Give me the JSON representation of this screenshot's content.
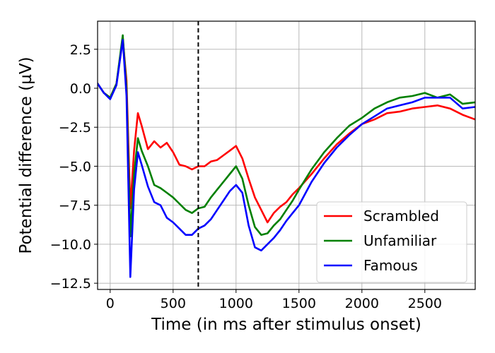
{
  "chart_data": {
    "type": "line",
    "title": "",
    "xlabel": "Time (in ms after stimulus onset)",
    "ylabel": "Potential difference (µV)",
    "xlim": [
      -100,
      2900
    ],
    "ylim": [
      -12.9,
      4.3
    ],
    "xticks": [
      0,
      500,
      1000,
      1500,
      2000,
      2500
    ],
    "xtick_labels": [
      "0",
      "500",
      "1000",
      "1500",
      "2000",
      "2500"
    ],
    "yticks": [
      2.5,
      0.0,
      -2.5,
      -5.0,
      -7.5,
      -10.0,
      -12.5
    ],
    "ytick_labels": [
      "2.5",
      "0.0",
      "−2.5",
      "−5.0",
      "−7.5",
      "−10.0",
      "−12.5"
    ],
    "grid": true,
    "legend_position": "lower-right",
    "vline": {
      "x": 700,
      "style": "dashed",
      "color": "#000000"
    },
    "series": [
      {
        "name": "Scrambled",
        "color": "#ff0000",
        "x": [
          -100,
          -50,
          0,
          50,
          100,
          130,
          160,
          190,
          220,
          250,
          300,
          350,
          400,
          450,
          500,
          550,
          600,
          650,
          700,
          750,
          800,
          850,
          900,
          950,
          1000,
          1050,
          1100,
          1150,
          1200,
          1250,
          1300,
          1350,
          1400,
          1450,
          1500,
          1600,
          1700,
          1800,
          1900,
          2000,
          2100,
          2200,
          2300,
          2400,
          2500,
          2600,
          2700,
          2800,
          2900
        ],
        "y": [
          0.3,
          -0.3,
          -0.6,
          0.3,
          3.2,
          0.5,
          -7.7,
          -4.0,
          -1.6,
          -2.4,
          -3.9,
          -3.4,
          -3.8,
          -3.5,
          -4.1,
          -4.9,
          -5.0,
          -5.2,
          -5.0,
          -5.0,
          -4.7,
          -4.6,
          -4.3,
          -4.0,
          -3.7,
          -4.5,
          -5.8,
          -7.0,
          -7.8,
          -8.6,
          -8.0,
          -7.6,
          -7.3,
          -6.8,
          -6.4,
          -5.5,
          -4.5,
          -3.6,
          -2.9,
          -2.3,
          -2.0,
          -1.6,
          -1.5,
          -1.3,
          -1.2,
          -1.1,
          -1.3,
          -1.7,
          -2.0
        ]
      },
      {
        "name": "Unfamiliar",
        "color": "#008000",
        "x": [
          -100,
          -50,
          0,
          50,
          100,
          130,
          160,
          190,
          220,
          250,
          300,
          350,
          400,
          450,
          500,
          550,
          600,
          650,
          700,
          750,
          800,
          850,
          900,
          950,
          1000,
          1050,
          1100,
          1150,
          1200,
          1250,
          1300,
          1350,
          1400,
          1450,
          1500,
          1600,
          1700,
          1800,
          1900,
          2000,
          2100,
          2200,
          2300,
          2400,
          2500,
          2600,
          2700,
          2800,
          2900
        ],
        "y": [
          0.3,
          -0.3,
          -0.6,
          0.3,
          3.4,
          0.0,
          -9.5,
          -5.5,
          -3.2,
          -4.0,
          -5.0,
          -6.2,
          -6.4,
          -6.7,
          -7.0,
          -7.4,
          -7.8,
          -8.0,
          -7.7,
          -7.6,
          -7.0,
          -6.5,
          -6.0,
          -5.5,
          -5.0,
          -5.8,
          -7.5,
          -8.9,
          -9.4,
          -9.3,
          -8.8,
          -8.4,
          -7.8,
          -7.2,
          -6.5,
          -5.2,
          -4.1,
          -3.2,
          -2.4,
          -1.9,
          -1.3,
          -0.9,
          -0.6,
          -0.5,
          -0.3,
          -0.6,
          -0.4,
          -1.0,
          -0.9
        ]
      },
      {
        "name": "Famous",
        "color": "#0000ff",
        "x": [
          -100,
          -50,
          0,
          50,
          100,
          130,
          160,
          190,
          220,
          250,
          300,
          350,
          400,
          450,
          500,
          550,
          600,
          650,
          700,
          750,
          800,
          850,
          900,
          950,
          1000,
          1050,
          1100,
          1150,
          1200,
          1250,
          1300,
          1350,
          1400,
          1450,
          1500,
          1600,
          1700,
          1800,
          1900,
          2000,
          2100,
          2200,
          2300,
          2400,
          2500,
          2600,
          2700,
          2800,
          2900
        ],
        "y": [
          0.3,
          -0.3,
          -0.7,
          0.2,
          3.1,
          -0.5,
          -12.1,
          -6.5,
          -4.1,
          -4.9,
          -6.3,
          -7.3,
          -7.5,
          -8.3,
          -8.6,
          -9.0,
          -9.4,
          -9.4,
          -9.0,
          -8.8,
          -8.4,
          -7.8,
          -7.2,
          -6.6,
          -6.2,
          -6.7,
          -8.8,
          -10.2,
          -10.4,
          -10.0,
          -9.6,
          -9.1,
          -8.5,
          -8.0,
          -7.5,
          -6.0,
          -4.8,
          -3.8,
          -3.0,
          -2.3,
          -1.8,
          -1.3,
          -1.1,
          -0.9,
          -0.6,
          -0.6,
          -0.6,
          -1.3,
          -1.2
        ]
      }
    ]
  }
}
